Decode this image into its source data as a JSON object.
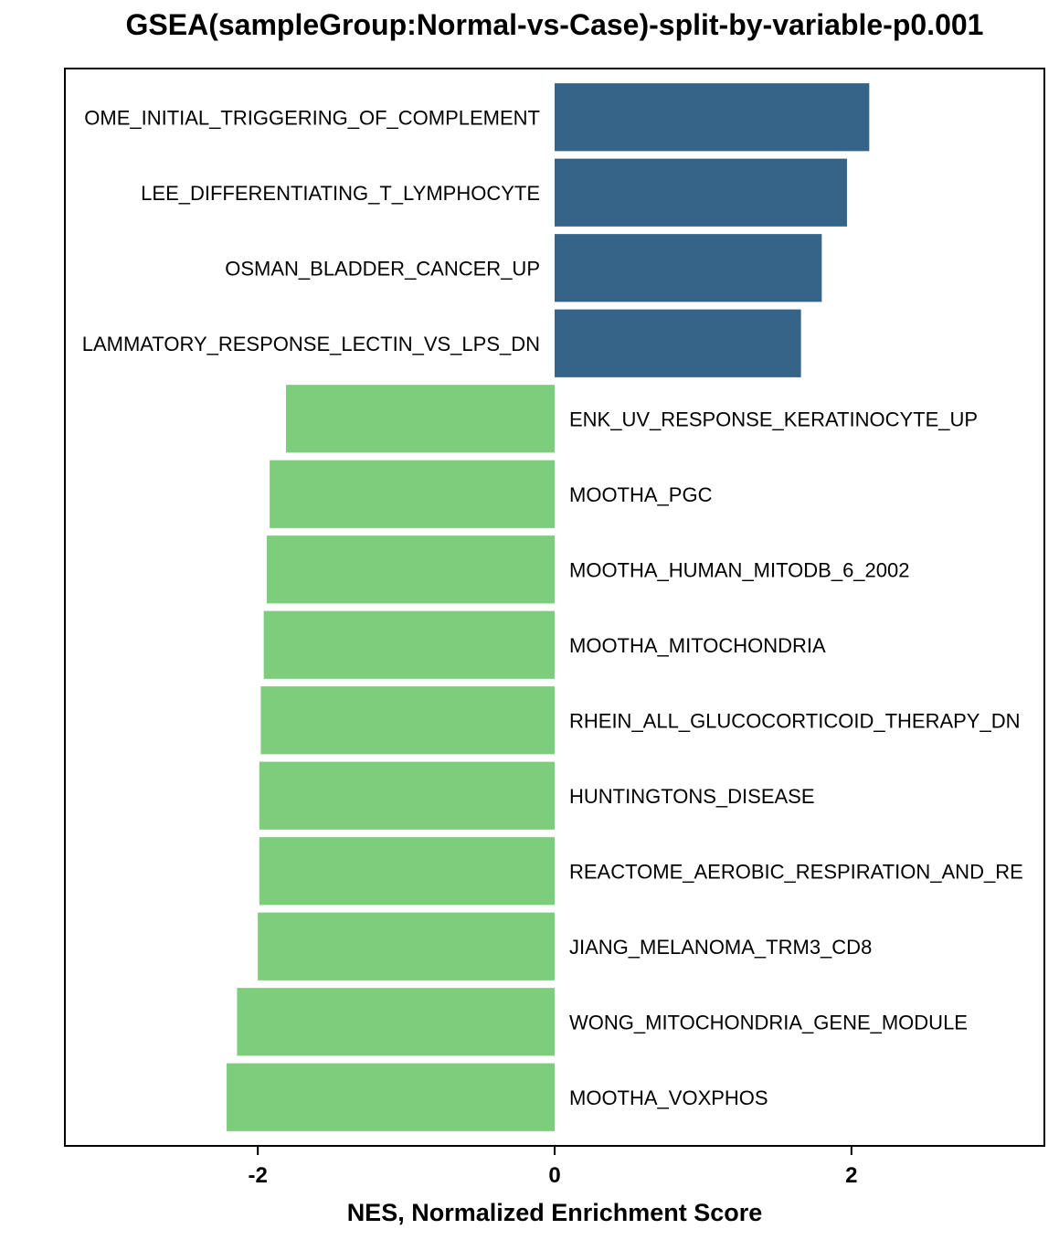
{
  "chart_data": {
    "type": "bar",
    "orientation": "horizontal",
    "title": "GSEA(sampleGroup:Normal-vs-Case)-split-by-variable-p0.001",
    "xlabel": "NES, Normalized Enrichment Score",
    "ylabel": "",
    "xlim": [
      -3.3,
      3.3
    ],
    "xticks": [
      -2,
      0,
      2
    ],
    "xtick_labels": [
      "-2",
      "0",
      "2"
    ],
    "grid": false,
    "legend": "none",
    "colors": {
      "positive": "#366489",
      "negative": "#7dcd7c"
    },
    "categories": [
      "OME_INITIAL_TRIGGERING_OF_COMPLEMENT",
      "LEE_DIFFERENTIATING_T_LYMPHOCYTE",
      "OSMAN_BLADDER_CANCER_UP",
      "LAMMATORY_RESPONSE_LECTIN_VS_LPS_DN",
      "ENK_UV_RESPONSE_KERATINOCYTE_UP",
      "MOOTHA_PGC",
      "MOOTHA_HUMAN_MITODB_6_2002",
      "MOOTHA_MITOCHONDRIA",
      "RHEIN_ALL_GLUCOCORTICOID_THERAPY_DN",
      "HUNTINGTONS_DISEASE",
      "REACTOME_AEROBIC_RESPIRATION_AND_RE",
      "JIANG_MELANOMA_TRM3_CD8",
      "WONG_MITOCHONDRIA_GENE_MODULE",
      "MOOTHA_VOXPHOS"
    ],
    "values": [
      2.12,
      1.97,
      1.8,
      1.66,
      -1.81,
      -1.92,
      -1.94,
      -1.96,
      -1.98,
      -1.99,
      -1.99,
      -2.0,
      -2.14,
      -2.21
    ]
  }
}
